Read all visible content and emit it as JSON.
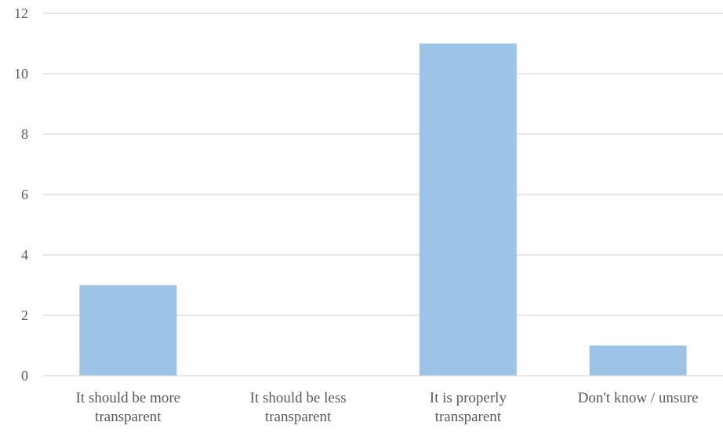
{
  "chart_data": {
    "type": "bar",
    "categories": [
      [
        "It should be more",
        "transparent"
      ],
      [
        "It should be less",
        "transparent"
      ],
      [
        "It is properly",
        "transparent"
      ],
      [
        "Don't know / unsure"
      ]
    ],
    "values": [
      3,
      0,
      11,
      1
    ],
    "ylim": [
      0,
      12
    ],
    "yticks": [
      0,
      2,
      4,
      6,
      8,
      10,
      12
    ],
    "grid": true,
    "bar_color": "#9dc3e6",
    "title": "",
    "xlabel": "",
    "ylabel": ""
  }
}
